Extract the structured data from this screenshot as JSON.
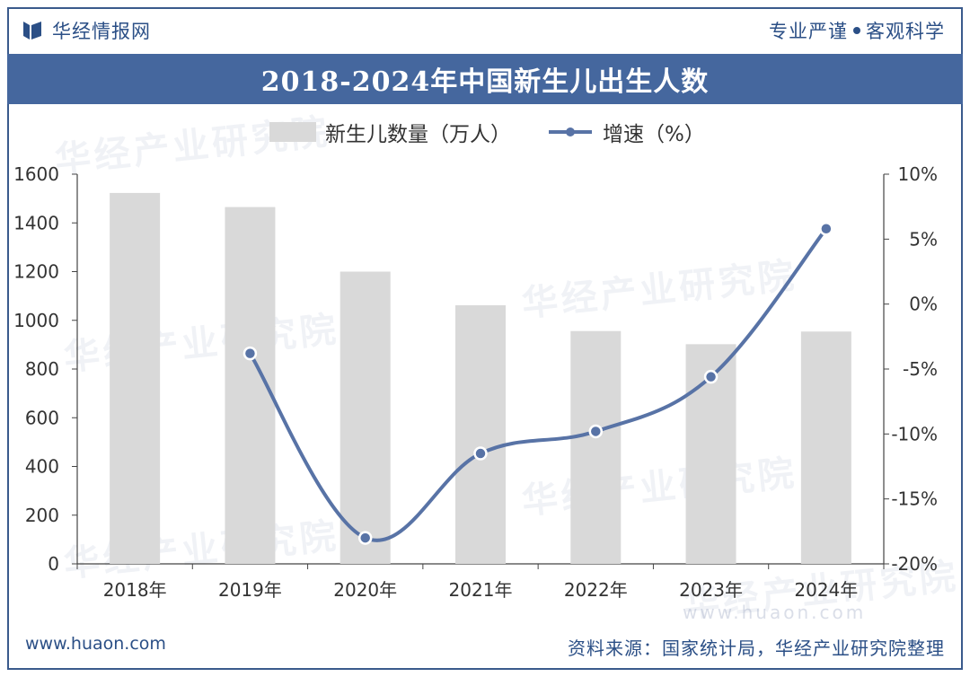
{
  "header": {
    "brand": "华经情报网",
    "slogan_left": "专业严谨",
    "slogan_right": "客观科学"
  },
  "watermark": {
    "text": "华经产业研究院",
    "url": "www.huaon.com"
  },
  "footer": {
    "website": "www.huaon.com",
    "source": "资料来源：国家统计局，华经产业研究院整理"
  },
  "colors": {
    "bar": "#d9d9d9",
    "line": "#5873a6",
    "title_bg": "#45679e",
    "brand": "#2b4f86"
  },
  "chart_data": {
    "type": "bar+line",
    "title": "2018-2024年中国新生儿出生人数",
    "categories": [
      "2018年",
      "2019年",
      "2020年",
      "2021年",
      "2022年",
      "2023年",
      "2024年"
    ],
    "series": [
      {
        "name": "新生儿数量（万人）",
        "type": "bar",
        "axis": "left",
        "values": [
          1523,
          1465,
          1200,
          1062,
          956,
          902,
          954
        ]
      },
      {
        "name": "增速（%）",
        "type": "line",
        "axis": "right",
        "values": [
          null,
          -3.8,
          -18.0,
          -11.5,
          -9.8,
          -5.6,
          5.8
        ]
      }
    ],
    "y_left": {
      "min": 0,
      "max": 1600,
      "step": 200,
      "ticks": [
        "0",
        "200",
        "400",
        "600",
        "800",
        "1000",
        "1200",
        "1400",
        "1600"
      ]
    },
    "y_right": {
      "min": -20,
      "max": 10,
      "step": 5,
      "ticks": [
        "-20%",
        "-15%",
        "-10%",
        "-5%",
        "0%",
        "5%",
        "10%"
      ]
    },
    "legend_position": "top"
  }
}
